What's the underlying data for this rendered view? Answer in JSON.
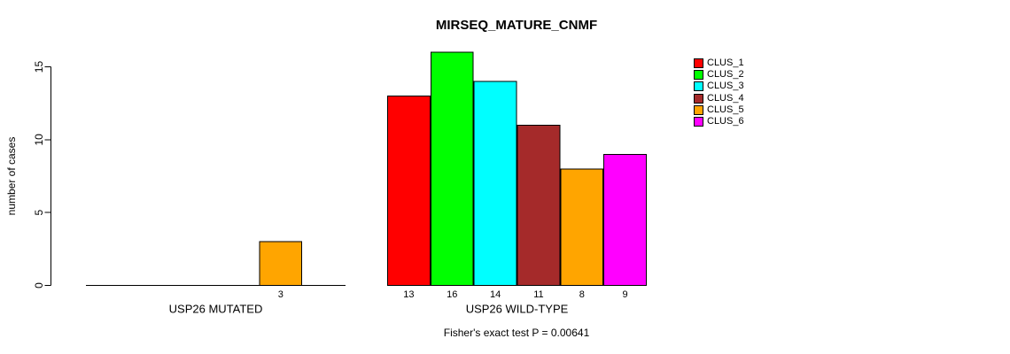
{
  "chart_data": {
    "type": "bar",
    "title": "MIRSEQ_MATURE_CNMF",
    "ylabel": "number of cases",
    "xlabel": "",
    "ylim": [
      0,
      15
    ],
    "yticks": [
      0,
      5,
      10,
      15
    ],
    "grid": false,
    "legend_position": "right",
    "categories": [
      "USP26 MUTATED",
      "USP26 WILD-TYPE"
    ],
    "series": [
      {
        "name": "CLUS_1",
        "color": "#FF0000",
        "values": [
          0,
          13
        ]
      },
      {
        "name": "CLUS_2",
        "color": "#00FF00",
        "values": [
          0,
          16
        ]
      },
      {
        "name": "CLUS_3",
        "color": "#00FFFF",
        "values": [
          0,
          14
        ]
      },
      {
        "name": "CLUS_4",
        "color": "#A52A2A",
        "values": [
          0,
          11
        ]
      },
      {
        "name": "CLUS_5",
        "color": "#FFA500",
        "values": [
          3,
          8
        ]
      },
      {
        "name": "CLUS_6",
        "color": "#FF00FF",
        "values": [
          0,
          9
        ]
      }
    ],
    "bar_labels": [
      [
        "",
        "",
        "",
        "",
        "3",
        ""
      ],
      [
        "13",
        "16",
        "14",
        "11",
        "8",
        "9"
      ]
    ],
    "annotation": "Fisher's exact test P = 0.00641",
    "axis_color": "#000000",
    "bar_border_color": "#000000"
  }
}
